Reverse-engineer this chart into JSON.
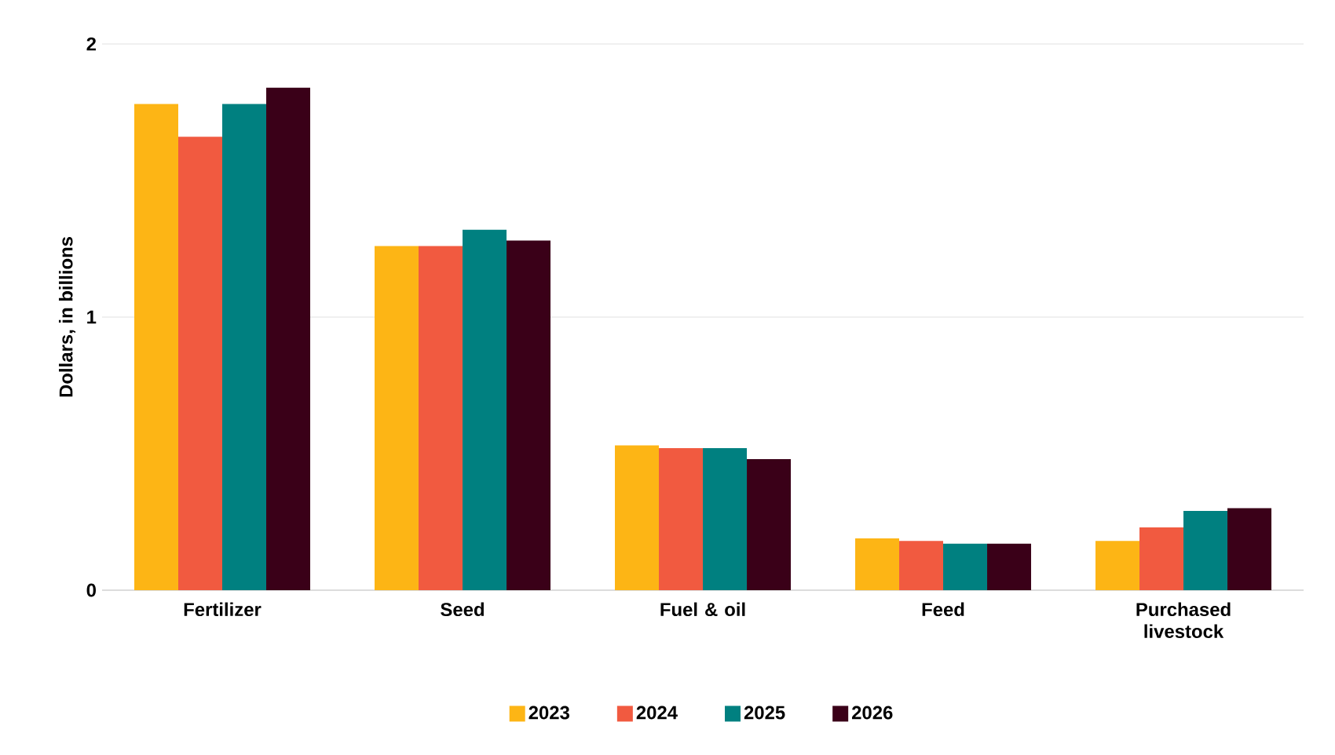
{
  "chart_data": {
    "type": "bar",
    "ylabel": "Dollars, in billions",
    "categories": [
      "Fertilizer",
      "Seed",
      "Fuel & oil",
      "Feed",
      "Purchased livestock"
    ],
    "series": [
      {
        "name": "2023",
        "color": "#fdb515",
        "values": [
          1.78,
          1.26,
          0.53,
          0.19,
          0.18
        ]
      },
      {
        "name": "2024",
        "color": "#f15a40",
        "values": [
          1.66,
          1.26,
          0.52,
          0.18,
          0.23
        ]
      },
      {
        "name": "2025",
        "color": "#008080",
        "values": [
          1.78,
          1.32,
          0.52,
          0.17,
          0.29
        ]
      },
      {
        "name": "2026",
        "color": "#3a0018",
        "values": [
          1.84,
          1.28,
          0.48,
          0.17,
          0.3
        ]
      }
    ],
    "ylim": [
      0,
      2
    ],
    "yticks": [
      0,
      1,
      2
    ],
    "grid": "y",
    "legend": "bottom"
  }
}
